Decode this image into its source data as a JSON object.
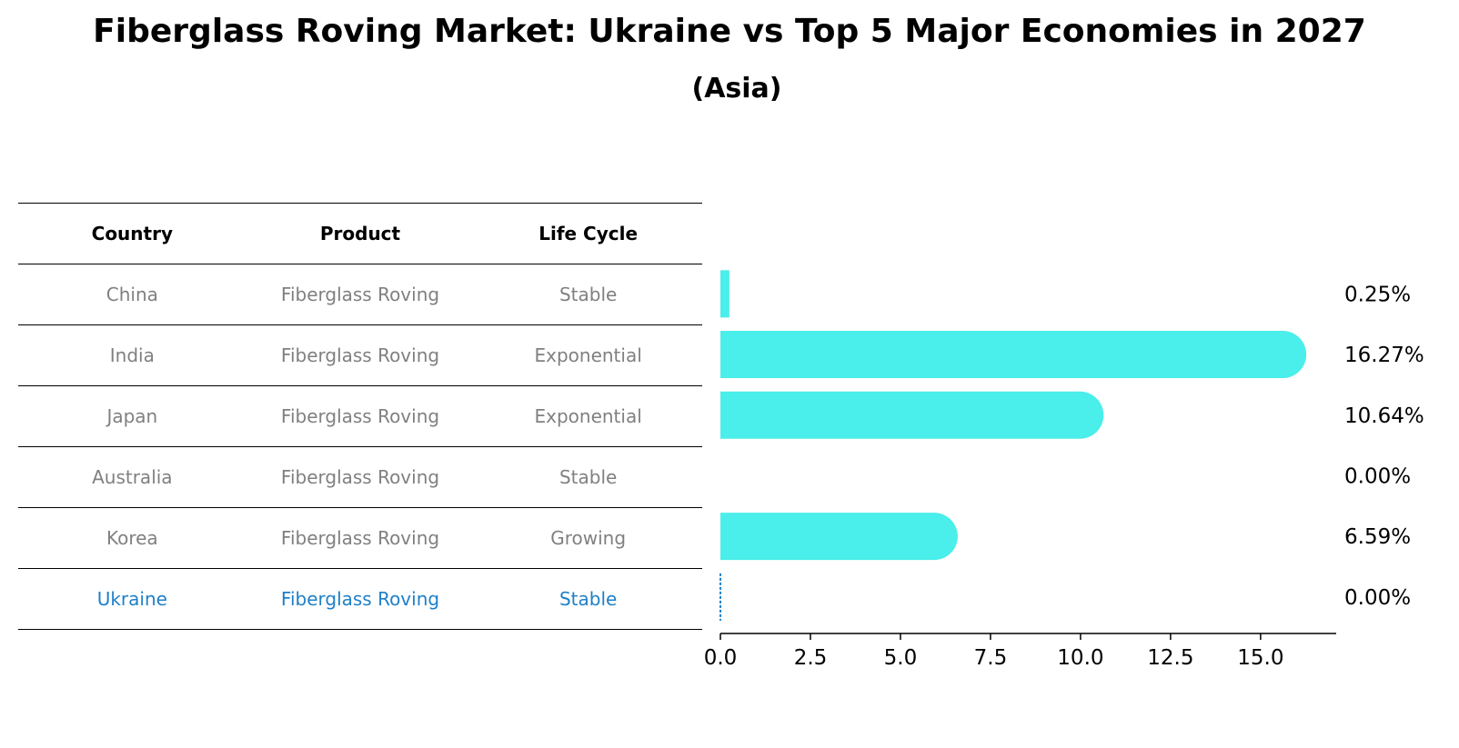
{
  "title": "Fiberglass Roving Market: Ukraine vs Top 5 Major Economies in 2027",
  "subtitle": "(Asia)",
  "table": {
    "headers": [
      "Country",
      "Product",
      "Life Cycle"
    ],
    "rows": [
      [
        "China",
        "Fiberglass Roving",
        "Stable"
      ],
      [
        "India",
        "Fiberglass Roving",
        "Exponential"
      ],
      [
        "Japan",
        "Fiberglass Roving",
        "Exponential"
      ],
      [
        "Australia",
        "Fiberglass Roving",
        "Stable"
      ],
      [
        "Korea",
        "Fiberglass Roving",
        "Growing"
      ],
      [
        "Ukraine",
        "Fiberglass Roving",
        "Stable"
      ]
    ],
    "highlight_row": "Ukraine"
  },
  "colors": {
    "bar": "#4aeeea",
    "highlight": "#1f80c8",
    "muted_text": "#808080"
  },
  "chart_data": {
    "type": "bar",
    "orientation": "horizontal",
    "categories": [
      "China",
      "India",
      "Japan",
      "Australia",
      "Korea",
      "Ukraine"
    ],
    "values": [
      0.25,
      16.27,
      10.64,
      0.0,
      6.59,
      0.0
    ],
    "value_labels": [
      "0.25%",
      "16.27%",
      "10.64%",
      "0.00%",
      "6.59%",
      "0.00%"
    ],
    "xlim": [
      0,
      17.1
    ],
    "xticks": [
      0.0,
      2.5,
      5.0,
      7.5,
      10.0,
      12.5,
      15.0
    ],
    "xtick_labels": [
      "0.0",
      "2.5",
      "5.0",
      "7.5",
      "10.0",
      "12.5",
      "15.0"
    ],
    "grid": false
  }
}
